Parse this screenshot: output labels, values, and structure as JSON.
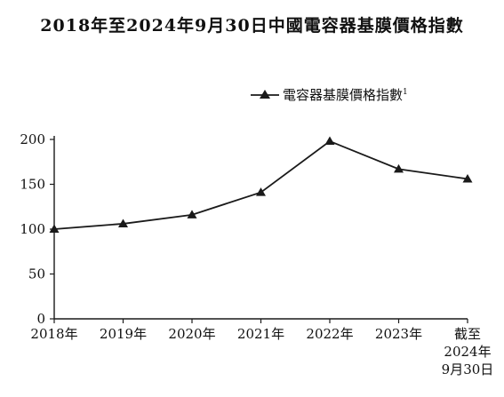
{
  "title": "2018年至2024年9月30日中國電容器基膜價格指數",
  "chart_data": {
    "type": "line",
    "title": "2018年至2024年9月30日中國電容器基膜價格指數",
    "categories": [
      "2018年",
      "2019年",
      "2020年",
      "2021年",
      "2022年",
      "2023年",
      "截至2024年9月30日"
    ],
    "category_label_lines": [
      [
        "2018年"
      ],
      [
        "2019年"
      ],
      [
        "2020年"
      ],
      [
        "2021年"
      ],
      [
        "2022年"
      ],
      [
        "2023年"
      ],
      [
        "截至",
        "2024年",
        "9月30日"
      ]
    ],
    "series": [
      {
        "name": "電容器基膜價格指數",
        "superscript": "1",
        "values": [
          100,
          106,
          116,
          141,
          198,
          167,
          156
        ],
        "marker": "triangle"
      }
    ],
    "y_ticks": [
      "0",
      "50",
      "100",
      "150",
      "200"
    ],
    "ylim": [
      0,
      200
    ],
    "xlabel": "",
    "ylabel": "",
    "legend_position": "top-right",
    "grid": false,
    "line_color": "#1a1a1a"
  }
}
